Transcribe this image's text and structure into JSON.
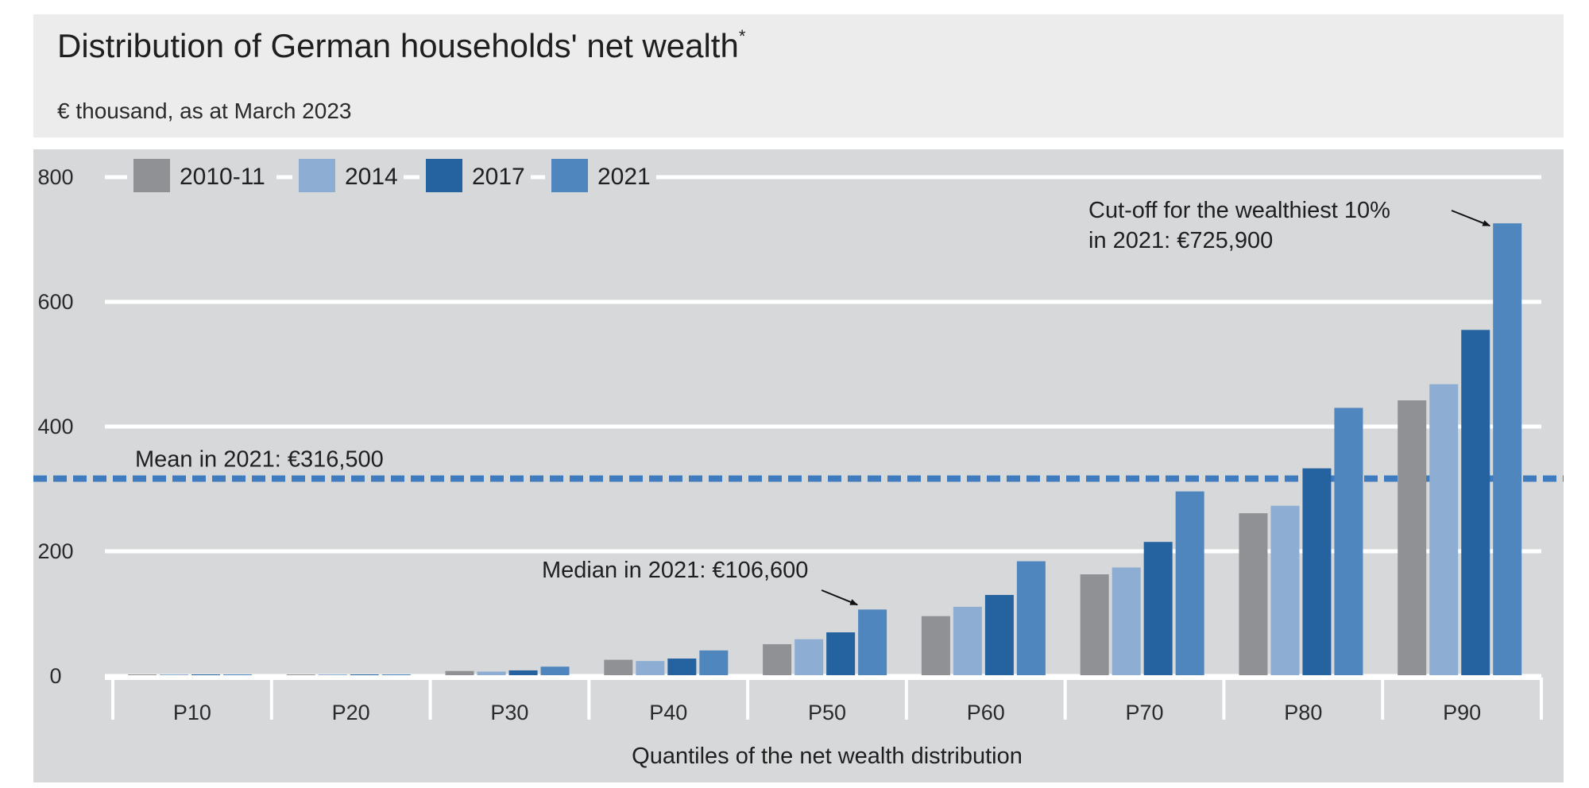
{
  "header": {
    "title": "Distribution of German households' net wealth",
    "title_mark": "*",
    "subtitle": "€ thousand, as at March 2023"
  },
  "colors": {
    "header_bg": "#ececec",
    "plot_bg": "#d7d8da",
    "grid": "#ffffff",
    "series": [
      "#8f9194",
      "#8eadd3",
      "#2563a0",
      "#4f86bd"
    ],
    "mean_line": "#3f7bbf"
  },
  "chart_data": {
    "type": "bar",
    "title": "Distribution of German households' net wealth",
    "subtitle": "€ thousand, as at March 2023",
    "xlabel": "Quantiles of the net wealth distribution",
    "ylabel": "",
    "ylim": [
      0,
      800
    ],
    "yticks": [
      0,
      200,
      400,
      600,
      800
    ],
    "grid": true,
    "legend_placement": "top-left",
    "categories": [
      "P10",
      "P20",
      "P30",
      "P40",
      "P50",
      "P60",
      "P70",
      "P80",
      "P90"
    ],
    "series": [
      {
        "name": "2010-11",
        "values": [
          0.5,
          2,
          8,
          26,
          51,
          96,
          163,
          261,
          442
        ]
      },
      {
        "name": "2014",
        "values": [
          0.5,
          1.5,
          7,
          24,
          59,
          111,
          174,
          273,
          468
        ]
      },
      {
        "name": "2017",
        "values": [
          0.5,
          2,
          9,
          28,
          70,
          130,
          215,
          333,
          555
        ]
      },
      {
        "name": "2021",
        "values": [
          0.5,
          2,
          15,
          41,
          106.6,
          184,
          296,
          430,
          725.9
        ]
      }
    ],
    "reference_lines": [
      {
        "label": "Mean in 2021: €316,500",
        "value": 316.5,
        "style": "dashed"
      }
    ],
    "annotations": [
      {
        "label": "Median in 2021: €106,600",
        "category": "P50",
        "series": "2021",
        "value": 106.6
      },
      {
        "label_line1": "Cut-off for the wealthiest 10%",
        "label_line2": "in 2021: €725,900",
        "category": "P90",
        "series": "2021",
        "value": 725.9
      }
    ]
  }
}
